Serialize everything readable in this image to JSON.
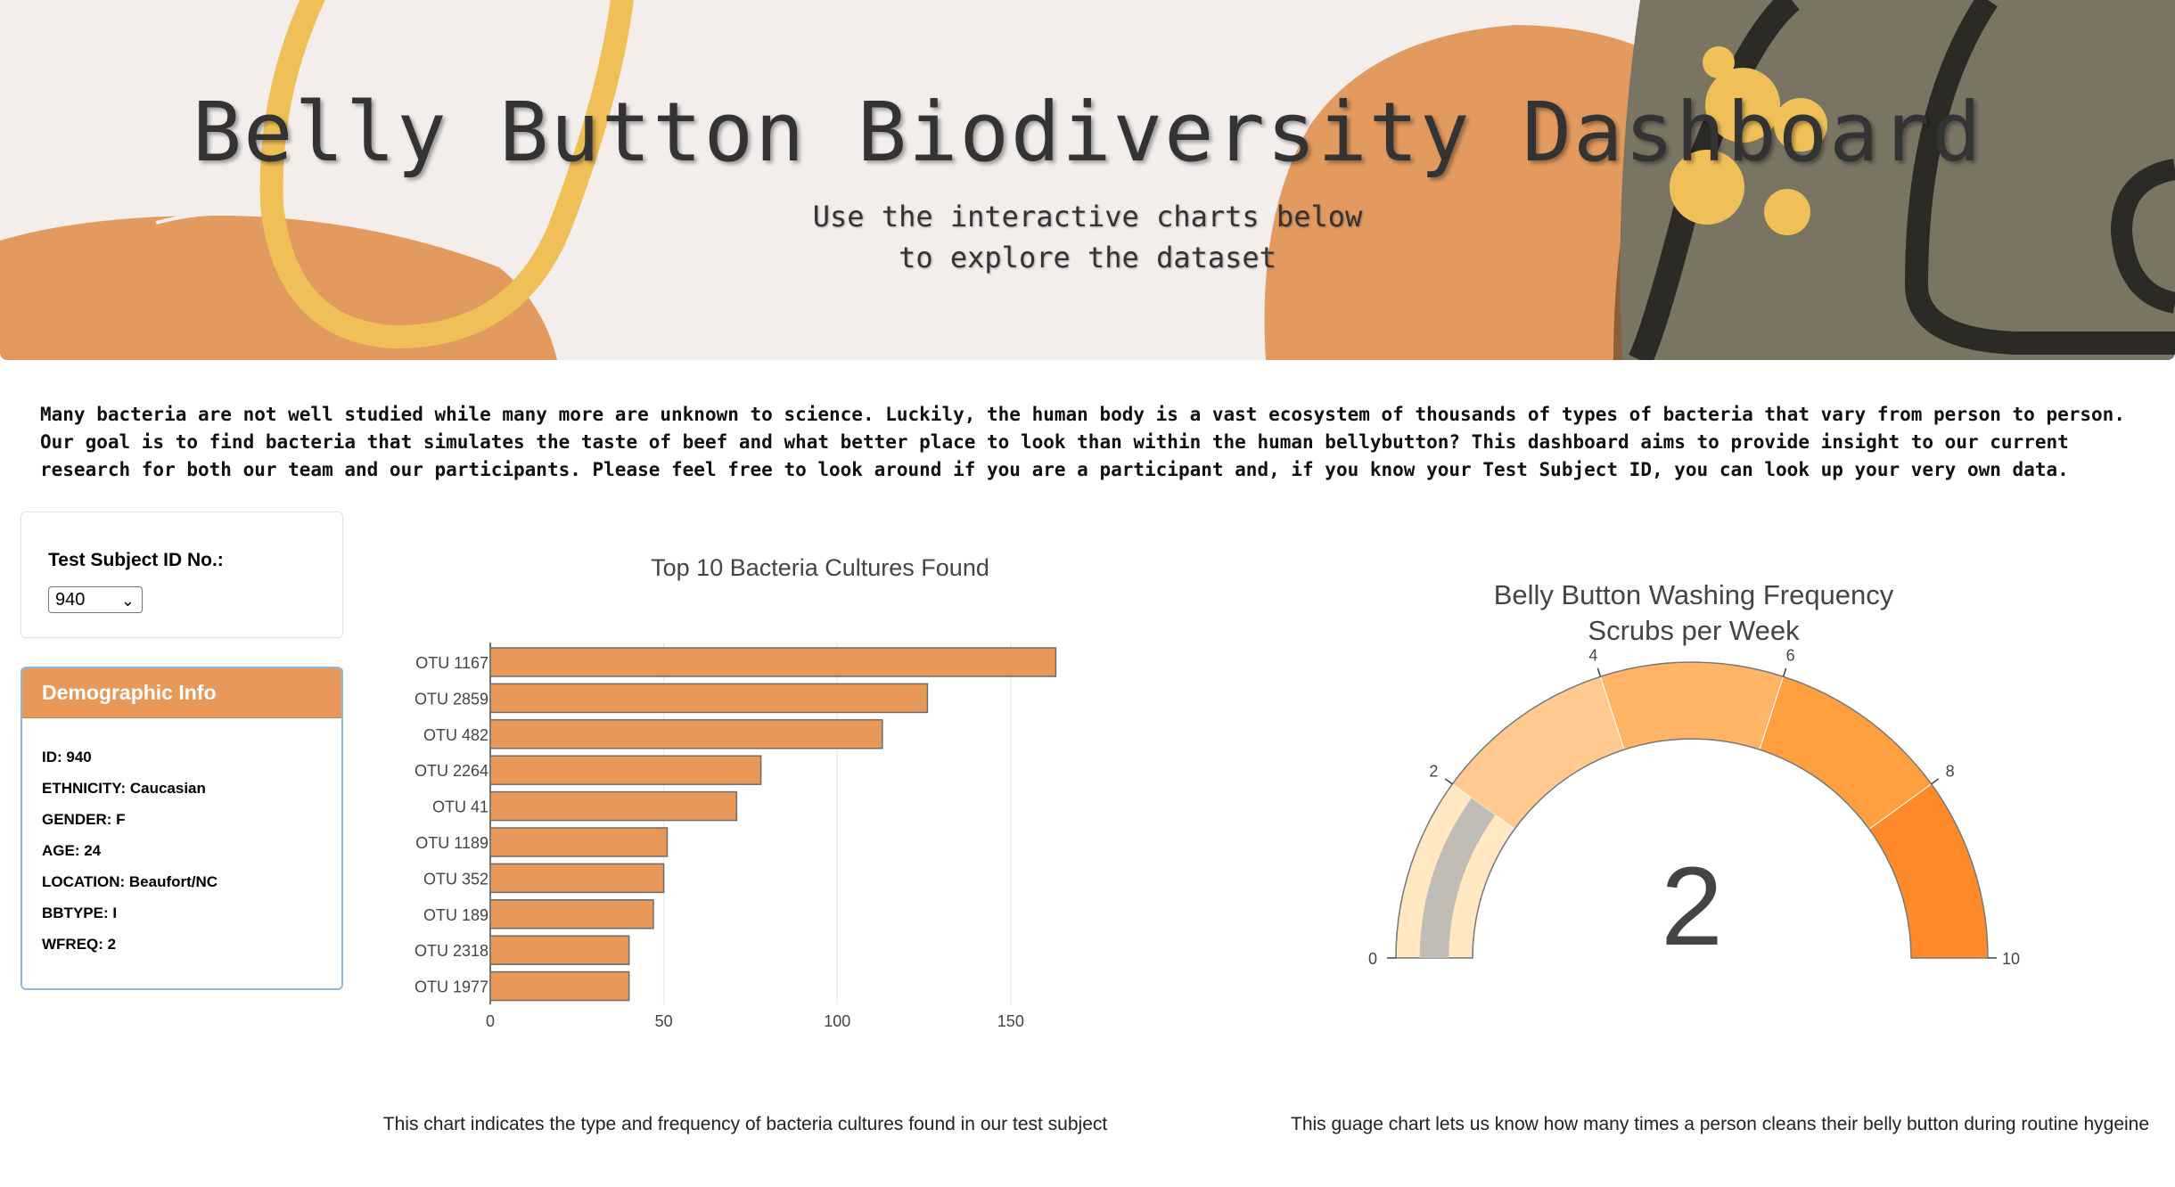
{
  "header": {
    "title": "Belly Button Biodiversity Dashboard",
    "subtitle_line1": "Use the interactive charts below",
    "subtitle_line2": "to explore the dataset"
  },
  "intro": "Many bacteria are not well studied while many more are unknown to science. Luckily, the human body is a vast ecosystem of thousands of types of bacteria that vary from person to person. Our goal is to find bacteria that simulates the taste of beef and what better place to look than within the human bellybutton? This dashboard aims to provide insight to our current research for both our team and our participants. Please feel free to look around if you are a participant and, if you know your Test Subject ID, you can look up your very own data.",
  "selector": {
    "label": "Test Subject ID No.:",
    "value": "940"
  },
  "demographics": {
    "title": "Demographic Info",
    "items": [
      "ID: 940",
      "ETHNICITY: Caucasian",
      "GENDER: F",
      "AGE: 24",
      "LOCATION: Beaufort/NC",
      "BBTYPE: I",
      "WFREQ: 2"
    ]
  },
  "colors": {
    "bar": "#e8995a",
    "bar_outline": "#6b6b6b",
    "demo_header": "#e8995a"
  },
  "chart_data": [
    {
      "type": "bar",
      "orientation": "horizontal",
      "title": "Top 10 Bacteria Cultures Found",
      "categories": [
        "OTU 1167",
        "OTU 2859",
        "OTU 482",
        "OTU 2264",
        "OTU 41",
        "OTU 1189",
        "OTU 352",
        "OTU 189",
        "OTU 2318",
        "OTU 1977"
      ],
      "values": [
        163,
        126,
        113,
        78,
        71,
        51,
        50,
        47,
        40,
        40
      ],
      "xlim": [
        0,
        167
      ],
      "xticks": [
        0,
        50,
        100,
        150
      ],
      "grid": true
    },
    {
      "type": "gauge",
      "title_line1": "Belly Button Washing Frequency",
      "title_line2": "Scrubs per Week",
      "value": 2,
      "range": [
        0,
        10
      ],
      "ticks": [
        0,
        2,
        4,
        6,
        8,
        10
      ],
      "steps": [
        {
          "from": 0,
          "to": 2,
          "color": "#ffe8c2"
        },
        {
          "from": 2,
          "to": 4,
          "color": "#ffc98f"
        },
        {
          "from": 4,
          "to": 6,
          "color": "#ffb466"
        },
        {
          "from": 6,
          "to": 8,
          "color": "#ff9f40"
        },
        {
          "from": 8,
          "to": 10,
          "color": "#ff8a2a"
        }
      ],
      "bar_color": "#c0bdb6"
    }
  ],
  "captions": {
    "bar": "This chart indicates the type and frequency of bacteria cultures found in our test subject",
    "gauge": "This guage chart lets us know how many times a person cleans their belly button during routine hygeine"
  }
}
